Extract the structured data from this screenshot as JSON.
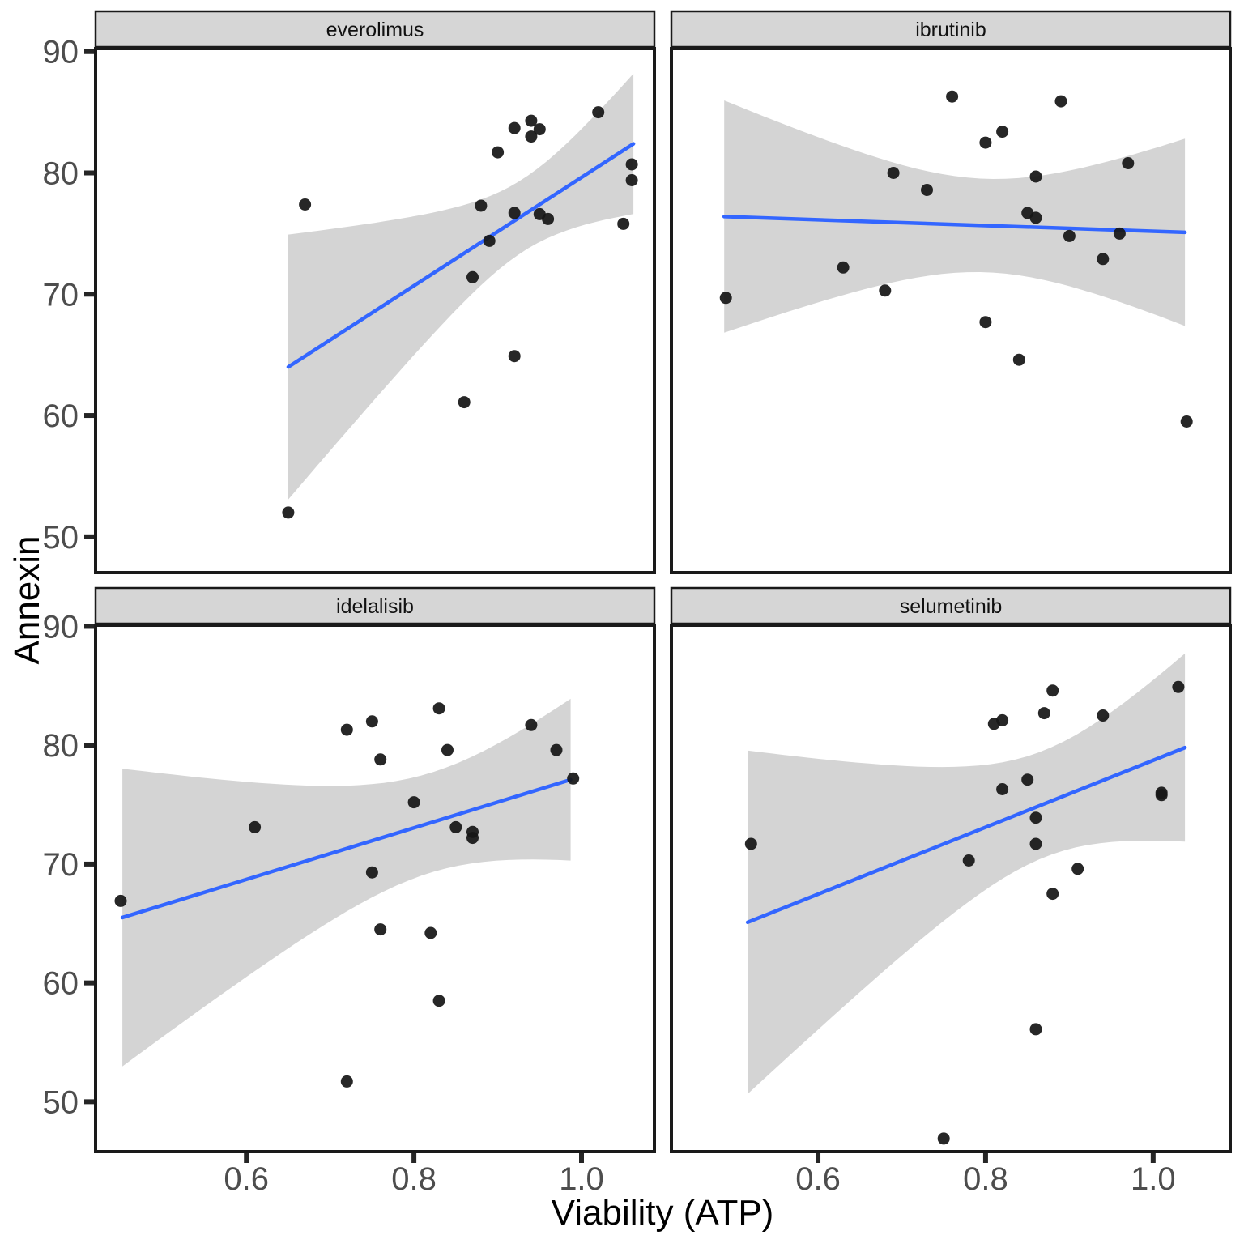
{
  "figure": {
    "x_axis_title": "Viability (ATP)",
    "y_axis_title": "Annexin",
    "x_tick_labels": [
      "0.6",
      "0.8",
      "1.0"
    ],
    "y_tick_labels": [
      "90",
      "80",
      "70",
      "60",
      "50"
    ]
  },
  "chart_data": {
    "type": "scatter",
    "title": "",
    "xlabel": "Viability (ATP)",
    "ylabel": "Annexin",
    "layout_hint": "2x2 facet grid, shared axes, no gridlines, white panels with black border, gray facet strips",
    "x_ticks": [
      0.6,
      0.8,
      1.0
    ],
    "y_ticks": [
      90,
      80,
      70,
      60,
      50
    ],
    "x_range": [
      0.42,
      1.09
    ],
    "y_range": [
      45.8,
      90.25
    ],
    "smooth": "linear fit with 95% confidence band",
    "colors": {
      "point": "#171717",
      "smooth_line": "#3366FF",
      "band": "#D4D4D4",
      "strip_fill": "#D6D6D6",
      "border": "#1A1A1A",
      "tick": "#262626",
      "tick_label": "#4D4D4D",
      "text": "#111111"
    },
    "facets": [
      {
        "label": "everolimus",
        "points": [
          [
            0.65,
            52.0
          ],
          [
            0.67,
            77.4
          ],
          [
            0.86,
            61.1
          ],
          [
            0.87,
            71.4
          ],
          [
            0.88,
            77.3
          ],
          [
            0.89,
            74.4
          ],
          [
            0.9,
            81.7
          ],
          [
            0.92,
            83.7
          ],
          [
            0.92,
            76.7
          ],
          [
            0.92,
            64.9
          ],
          [
            0.94,
            84.3
          ],
          [
            0.94,
            83.0
          ],
          [
            0.95,
            83.6
          ],
          [
            0.95,
            76.6
          ],
          [
            0.96,
            76.2
          ],
          [
            1.02,
            85.0
          ],
          [
            1.05,
            75.8
          ],
          [
            1.06,
            80.7
          ],
          [
            1.06,
            79.4
          ]
        ],
        "trend_line": {
          "x": [
            0.65,
            1.062
          ],
          "y": [
            64.0,
            82.4
          ]
        },
        "ci_band": {
          "center_x": 0.93,
          "min_half_width": 3.0,
          "spread": 0.08
        }
      },
      {
        "label": "ibrutinib",
        "points": [
          [
            0.49,
            69.7
          ],
          [
            0.63,
            72.2
          ],
          [
            0.68,
            70.3
          ],
          [
            0.69,
            80.0
          ],
          [
            0.73,
            78.6
          ],
          [
            0.76,
            86.3
          ],
          [
            0.8,
            82.5
          ],
          [
            0.8,
            67.7
          ],
          [
            0.82,
            83.4
          ],
          [
            0.84,
            64.6
          ],
          [
            0.86,
            79.7
          ],
          [
            0.85,
            76.7
          ],
          [
            0.86,
            76.3
          ],
          [
            0.89,
            85.9
          ],
          [
            0.9,
            74.8
          ],
          [
            0.94,
            72.9
          ],
          [
            0.96,
            75.0
          ],
          [
            0.97,
            80.8
          ],
          [
            1.04,
            59.5
          ]
        ],
        "trend_line": {
          "x": [
            0.488,
            1.038
          ],
          "y": [
            76.4,
            75.1
          ]
        },
        "ci_band": {
          "center_x": 0.8,
          "min_half_width": 3.85,
          "spread": 0.137
        }
      },
      {
        "label": "idelalisib",
        "points": [
          [
            0.45,
            66.9
          ],
          [
            0.61,
            73.1
          ],
          [
            0.72,
            51.7
          ],
          [
            0.72,
            81.3
          ],
          [
            0.75,
            82.0
          ],
          [
            0.75,
            69.3
          ],
          [
            0.76,
            78.8
          ],
          [
            0.76,
            64.5
          ],
          [
            0.8,
            75.2
          ],
          [
            0.82,
            64.2
          ],
          [
            0.83,
            83.1
          ],
          [
            0.83,
            58.5
          ],
          [
            0.84,
            79.6
          ],
          [
            0.85,
            73.1
          ],
          [
            0.87,
            72.7
          ],
          [
            0.87,
            72.2
          ],
          [
            0.94,
            81.7
          ],
          [
            0.97,
            79.6
          ],
          [
            0.99,
            77.2
          ]
        ],
        "trend_line": {
          "x": [
            0.452,
            0.987
          ],
          "y": [
            65.5,
            77.1
          ]
        },
        "ci_band": {
          "center_x": 0.82,
          "min_half_width": 4.2,
          "spread": 0.131
        }
      },
      {
        "label": "selumetinib",
        "points": [
          [
            0.52,
            71.7
          ],
          [
            0.75,
            46.9
          ],
          [
            0.78,
            70.3
          ],
          [
            0.81,
            81.8
          ],
          [
            0.82,
            82.1
          ],
          [
            0.82,
            76.3
          ],
          [
            0.85,
            77.1
          ],
          [
            0.86,
            73.9
          ],
          [
            0.86,
            71.7
          ],
          [
            0.86,
            56.1
          ],
          [
            0.87,
            82.7
          ],
          [
            0.88,
            67.5
          ],
          [
            0.88,
            84.6
          ],
          [
            0.91,
            69.6
          ],
          [
            0.94,
            82.5
          ],
          [
            1.01,
            75.8
          ],
          [
            1.01,
            76.0
          ],
          [
            1.03,
            84.9
          ]
        ],
        "trend_line": {
          "x": [
            0.516,
            1.038
          ],
          "y": [
            65.1,
            79.8
          ]
        },
        "ci_band": {
          "center_x": 0.87,
          "min_half_width": 4.5,
          "spread": 0.116
        }
      }
    ]
  }
}
